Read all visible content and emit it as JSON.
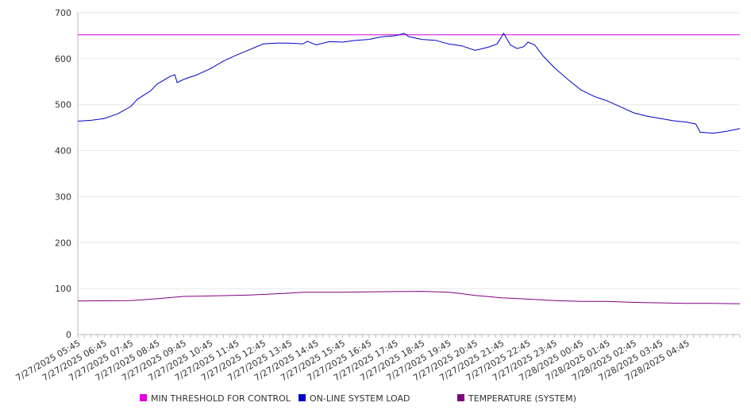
{
  "chart_data": {
    "type": "line",
    "title": "",
    "xlabel": "",
    "ylabel": "",
    "ylim": [
      0,
      700
    ],
    "yticks": [
      0,
      100,
      200,
      300,
      400,
      500,
      600,
      700
    ],
    "grid": "horizontal",
    "legend_position": "bottom",
    "x_start": "7/27/2025 05:45",
    "x_end": "7/28/2025 06:45",
    "xtick_labels": [
      "7/27/2025 05:45",
      "7/27/2025 06:45",
      "7/27/2025 07:45",
      "7/27/2025 08:45",
      "7/27/2025 09:45",
      "7/27/2025 10:45",
      "7/27/2025 11:45",
      "7/27/2025 12:45",
      "7/27/2025 13:45",
      "7/27/2025 14:45",
      "7/27/2025 15:45",
      "7/27/2025 16:45",
      "7/27/2025 17:45",
      "7/27/2025 18:45",
      "7/27/2025 19:45",
      "7/27/2025 20:45",
      "7/27/2025 21:45",
      "7/27/2025 22:45",
      "7/27/2025 23:45",
      "7/28/2025 00:45",
      "7/28/2025 01:45",
      "7/28/2025 02:45",
      "7/28/2025 03:45",
      "7/28/2025 04:45"
    ],
    "series": [
      {
        "name": "MIN THRESHOLD FOR CONTROL",
        "color": "#e000e0",
        "points": [
          [
            "7/27/2025 05:45",
            652
          ],
          [
            "7/28/2025 06:45",
            652
          ]
        ]
      },
      {
        "name": "ON-LINE SYSTEM LOAD",
        "color": "#0000cc",
        "points": [
          [
            "7/27/2025 05:45",
            464
          ],
          [
            "7/27/2025 06:15",
            466
          ],
          [
            "7/27/2025 06:45",
            470
          ],
          [
            "7/27/2025 07:15",
            480
          ],
          [
            "7/27/2025 07:30",
            488
          ],
          [
            "7/27/2025 07:45",
            496
          ],
          [
            "7/27/2025 08:00",
            512
          ],
          [
            "7/27/2025 08:30",
            530
          ],
          [
            "7/27/2025 08:45",
            545
          ],
          [
            "7/27/2025 09:15",
            562
          ],
          [
            "7/27/2025 09:25",
            565
          ],
          [
            "7/27/2025 09:30",
            548
          ],
          [
            "7/27/2025 09:45",
            555
          ],
          [
            "7/27/2025 10:15",
            565
          ],
          [
            "7/27/2025 10:45",
            578
          ],
          [
            "7/27/2025 11:15",
            595
          ],
          [
            "7/27/2025 11:45",
            608
          ],
          [
            "7/27/2025 12:15",
            620
          ],
          [
            "7/27/2025 12:45",
            632
          ],
          [
            "7/27/2025 13:15",
            634
          ],
          [
            "7/27/2025 13:45",
            634
          ],
          [
            "7/27/2025 14:15",
            632
          ],
          [
            "7/27/2025 14:25",
            638
          ],
          [
            "7/27/2025 14:45",
            630
          ],
          [
            "7/27/2025 15:15",
            637
          ],
          [
            "7/27/2025 15:45",
            636
          ],
          [
            "7/27/2025 16:15",
            640
          ],
          [
            "7/27/2025 16:45",
            642
          ],
          [
            "7/27/2025 17:15",
            648
          ],
          [
            "7/27/2025 17:45",
            650
          ],
          [
            "7/27/2025 18:05",
            655
          ],
          [
            "7/27/2025 18:15",
            648
          ],
          [
            "7/27/2025 18:45",
            642
          ],
          [
            "7/27/2025 19:15",
            640
          ],
          [
            "7/27/2025 19:45",
            632
          ],
          [
            "7/27/2025 20:15",
            628
          ],
          [
            "7/27/2025 20:45",
            618
          ],
          [
            "7/27/2025 21:15",
            625
          ],
          [
            "7/27/2025 21:35",
            632
          ],
          [
            "7/27/2025 21:50",
            655
          ],
          [
            "7/27/2025 22:05",
            630
          ],
          [
            "7/27/2025 22:20",
            622
          ],
          [
            "7/27/2025 22:35",
            626
          ],
          [
            "7/27/2025 22:45",
            636
          ],
          [
            "7/27/2025 23:00",
            630
          ],
          [
            "7/27/2025 23:20",
            605
          ],
          [
            "7/27/2025 23:45",
            580
          ],
          [
            "7/28/2025 00:15",
            555
          ],
          [
            "7/28/2025 00:45",
            532
          ],
          [
            "7/28/2025 01:15",
            518
          ],
          [
            "7/28/2025 01:45",
            508
          ],
          [
            "7/28/2025 02:15",
            495
          ],
          [
            "7/28/2025 02:45",
            482
          ],
          [
            "7/28/2025 03:15",
            475
          ],
          [
            "7/28/2025 03:45",
            470
          ],
          [
            "7/28/2025 04:15",
            465
          ],
          [
            "7/28/2025 04:45",
            462
          ],
          [
            "7/28/2025 05:05",
            458
          ],
          [
            "7/28/2025 05:15",
            440
          ],
          [
            "7/28/2025 05:45",
            438
          ],
          [
            "7/28/2025 06:15",
            442
          ],
          [
            "7/28/2025 06:45",
            448
          ]
        ]
      },
      {
        "name": "TEMPERATURE (SYSTEM)",
        "color": "#800080",
        "points": [
          [
            "7/27/2025 05:45",
            73
          ],
          [
            "7/27/2025 07:45",
            74
          ],
          [
            "7/27/2025 08:45",
            78
          ],
          [
            "7/27/2025 09:45",
            83
          ],
          [
            "7/27/2025 10:45",
            84
          ],
          [
            "7/27/2025 12:15",
            86
          ],
          [
            "7/27/2025 13:45",
            90
          ],
          [
            "7/27/2025 14:15",
            92
          ],
          [
            "7/27/2025 15:45",
            92
          ],
          [
            "7/27/2025 16:45",
            93
          ],
          [
            "7/27/2025 18:45",
            94
          ],
          [
            "7/27/2025 19:45",
            92
          ],
          [
            "7/27/2025 20:15",
            89
          ],
          [
            "7/27/2025 20:45",
            85
          ],
          [
            "7/27/2025 21:45",
            80
          ],
          [
            "7/27/2025 22:45",
            77
          ],
          [
            "7/27/2025 23:45",
            74
          ],
          [
            "7/28/2025 00:45",
            72
          ],
          [
            "7/28/2025 01:45",
            72
          ],
          [
            "7/28/2025 02:45",
            70
          ],
          [
            "7/28/2025 03:45",
            69
          ],
          [
            "7/28/2025 04:45",
            68
          ],
          [
            "7/28/2025 05:45",
            68
          ],
          [
            "7/28/2025 06:45",
            67
          ]
        ]
      }
    ]
  }
}
